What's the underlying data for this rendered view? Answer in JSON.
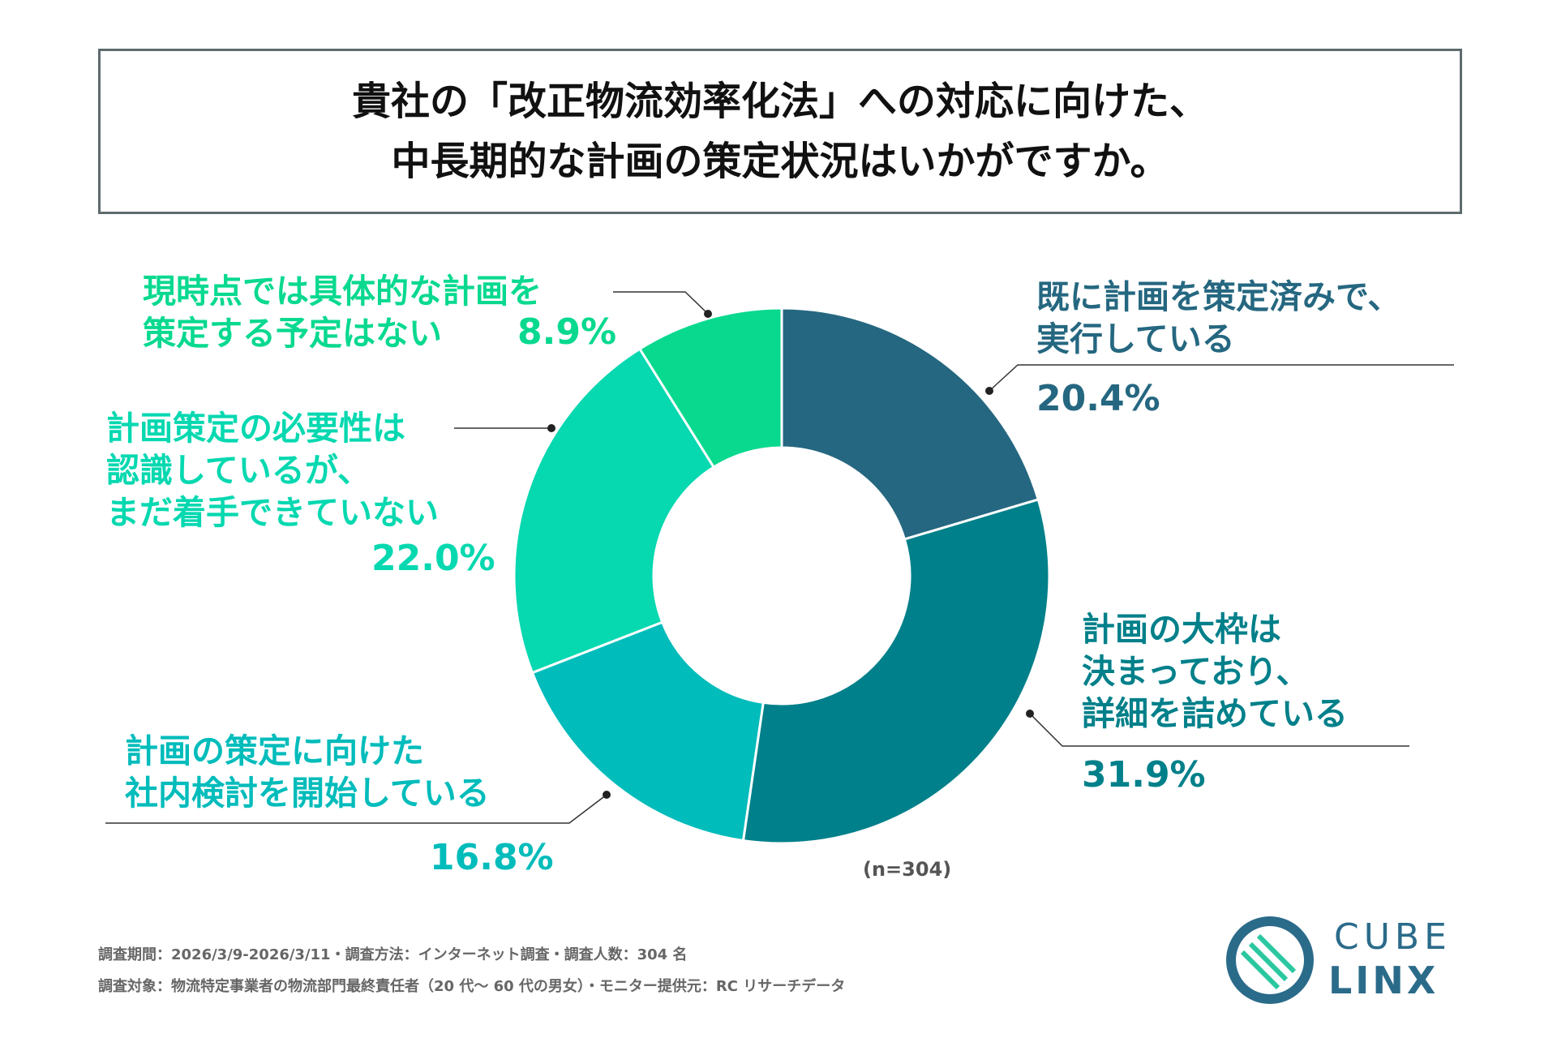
{
  "title": {
    "line1": "貴社の「改正物流効率化法」への対応に向けた、",
    "line2": "中長期的な計画の策定状況はいかがですか。"
  },
  "chart_data": {
    "type": "pie",
    "donut": true,
    "sample_note": "(n=304)",
    "slices": [
      {
        "lines": [
          "既に計画を策定済みで、",
          "実行している"
        ],
        "value": 20.4,
        "percent": "20.4%",
        "color": "#256780"
      },
      {
        "lines": [
          "計画の大枠は",
          "決まっており、",
          "詳細を詰めている"
        ],
        "value": 31.9,
        "percent": "31.9%",
        "color": "#00808a"
      },
      {
        "lines": [
          "計画の策定に向けた",
          "社内検討を開始している"
        ],
        "value": 16.8,
        "percent": "16.8%",
        "color": "#00bcbb"
      },
      {
        "lines": [
          "計画策定の必要性は",
          "認識しているが、",
          "まだ着手できていない"
        ],
        "value": 22.0,
        "percent": "22.0%",
        "color": "#06d8b0"
      },
      {
        "lines": [
          "現時点では具体的な計画を",
          "策定する予定はない"
        ],
        "value": 8.9,
        "percent": "8.9%",
        "color": "#08d98f"
      }
    ]
  },
  "footer": {
    "line1": "調査期間：2026/3/9-2026/3/11・調査方法：インターネット調査・調査人数：304 名",
    "line2": "調査対象：物流特定事業者の物流部門最終責任者（20 代～ 60 代の男女）・モニター提供元：RC リサーチデータ"
  },
  "logo": {
    "word1": "CUBE",
    "word2": "LINX"
  }
}
